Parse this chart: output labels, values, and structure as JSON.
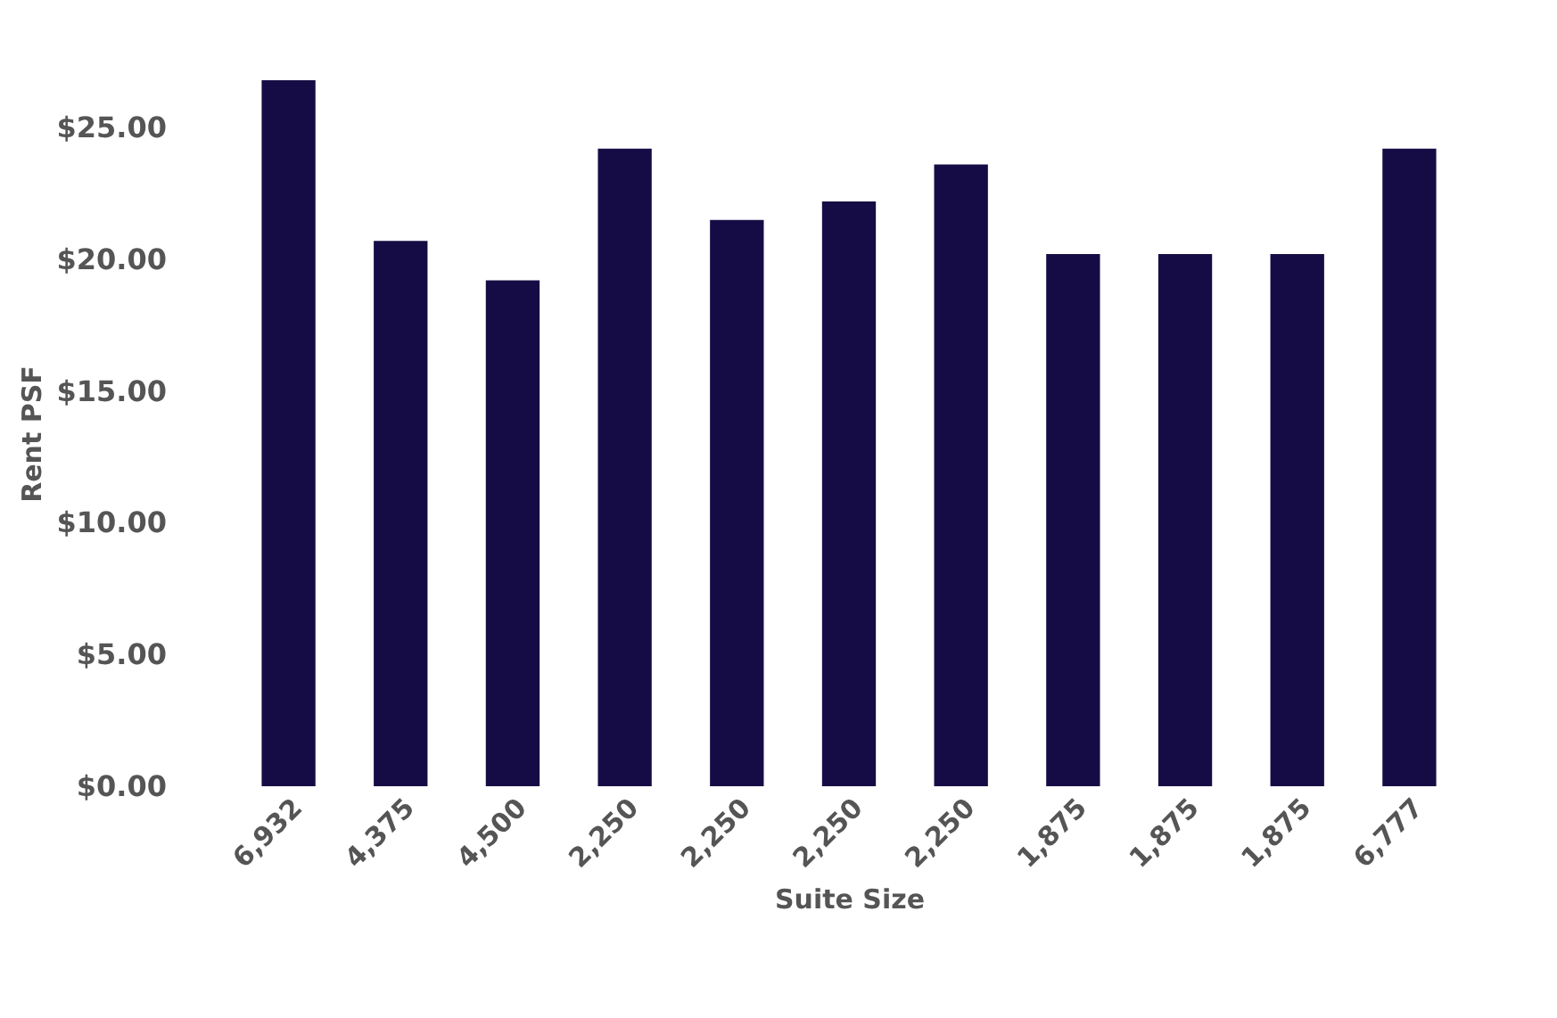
{
  "chart_data": {
    "type": "bar",
    "xlabel": "Suite Size",
    "ylabel": "Rent PSF",
    "categories": [
      "6,932",
      "4,375",
      "4,500",
      "2,250",
      "2,250",
      "2,250",
      "2,250",
      "1,875",
      "1,875",
      "1,875",
      "6,777"
    ],
    "values": [
      26.8,
      20.7,
      19.2,
      24.2,
      21.5,
      22.2,
      23.6,
      20.2,
      20.2,
      20.2,
      24.2
    ],
    "color": "#160c45",
    "ylim": [
      0,
      26.8
    ],
    "yticks": [
      {
        "value": 0,
        "label": "$0.00"
      },
      {
        "value": 5,
        "label": "$5.00"
      },
      {
        "value": 10,
        "label": "$10.00"
      },
      {
        "value": 15,
        "label": "$15.00"
      },
      {
        "value": 20,
        "label": "$20.00"
      },
      {
        "value": 25,
        "label": "$25.00"
      }
    ]
  }
}
